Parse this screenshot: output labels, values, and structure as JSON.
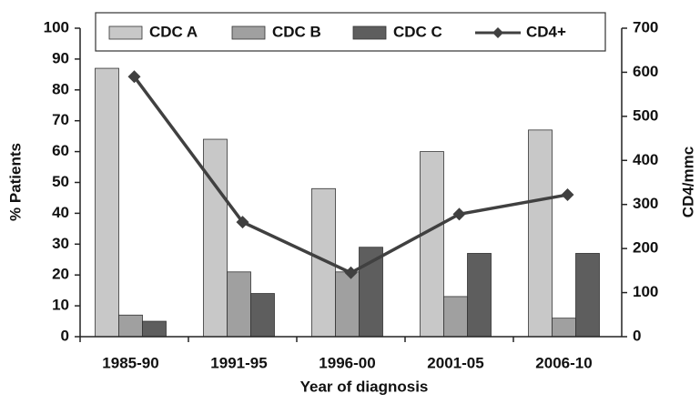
{
  "chart_data": {
    "type": "bar_line",
    "categories": [
      "1985-90",
      "1991-95",
      "1996-00",
      "2001-05",
      "2006-10"
    ],
    "series": [
      {
        "name": "CDC A",
        "color": "#c8c8c8",
        "values": [
          87,
          64,
          48,
          60,
          67
        ]
      },
      {
        "name": "CDC B",
        "color": "#a0a0a0",
        "values": [
          7,
          21,
          21,
          13,
          6
        ]
      },
      {
        "name": "CDC C",
        "color": "#5e5e5e",
        "values": [
          5,
          14,
          29,
          27,
          27
        ]
      },
      {
        "name": "CD4+",
        "color": "#404040",
        "type": "line",
        "axis": "y2",
        "values": [
          590,
          260,
          145,
          278,
          322
        ]
      }
    ],
    "x_label": "Year of diagnosis",
    "y_label": "% Patients",
    "y2_label": "CD4/mmc",
    "ylim": [
      0,
      100
    ],
    "yticks": [
      0,
      10,
      20,
      30,
      40,
      50,
      60,
      70,
      80,
      90,
      100
    ],
    "y2lim": [
      0,
      700
    ],
    "y2ticks": [
      0,
      100,
      200,
      300,
      400,
      500,
      600,
      700
    ],
    "legend": "top",
    "grid": false
  }
}
